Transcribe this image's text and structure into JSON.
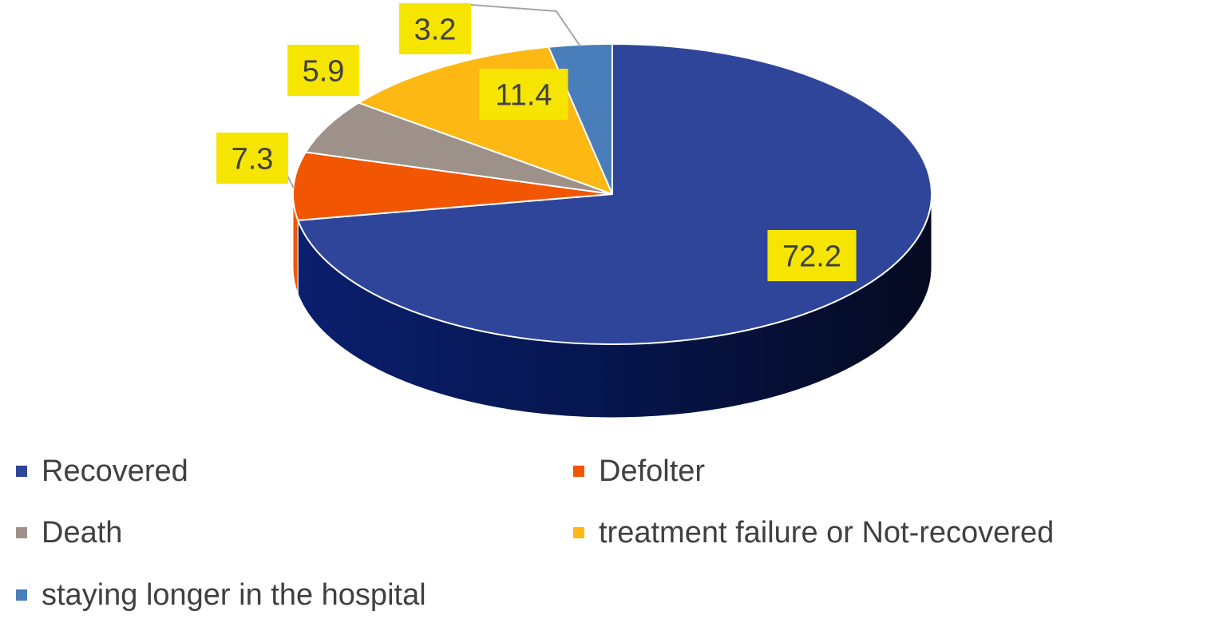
{
  "chart_data": {
    "type": "pie",
    "title": "",
    "categories": [
      "Recovered",
      "Defolter",
      "Death",
      "treatment failure or Not-recovered",
      "staying longer in the hospital"
    ],
    "values": [
      72.2,
      7.3,
      5.9,
      11.4,
      3.2
    ],
    "data_labels": [
      "72.2",
      "7.3",
      "5.9",
      "11.4",
      "3.2"
    ],
    "colors": [
      "#2E4599",
      "#F25603",
      "#9D918A",
      "#FDB813",
      "#4A7EBB"
    ],
    "label_background": "#F5E500",
    "legend_position": "bottom",
    "style": "3d"
  },
  "legend": {
    "items": [
      {
        "label": "Recovered",
        "color": "#2E4599"
      },
      {
        "label": "Defolter",
        "color": "#F25603"
      },
      {
        "label": "Death",
        "color": "#9D918A"
      },
      {
        "label": "treatment failure or Not-recovered",
        "color": "#FDB813"
      },
      {
        "label": "staying longer in the hospital",
        "color": "#4A7EBB"
      }
    ]
  }
}
